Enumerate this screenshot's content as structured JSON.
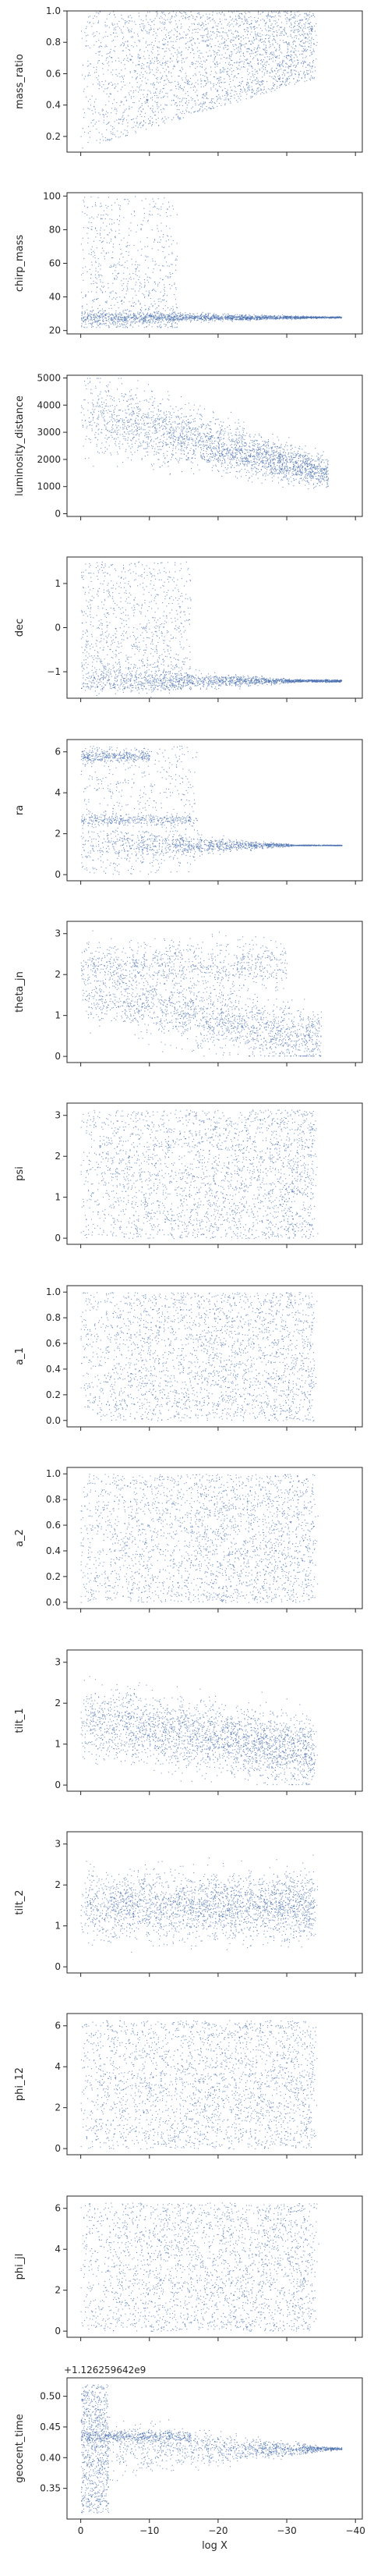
{
  "figure": {
    "xlabel": "log X"
  },
  "chart_data": [
    {
      "type": "scatter",
      "ylabel": "mass_ratio",
      "ylim": [
        0.1,
        1.0
      ],
      "yticks": [
        0.2,
        0.4,
        0.6,
        0.8,
        1.0
      ],
      "yticklabels": [
        "0.2",
        "0.4",
        "0.6",
        "0.8",
        "1.0"
      ]
    },
    {
      "type": "scatter",
      "ylabel": "chirp_mass",
      "ylim": [
        18,
        102
      ],
      "yticks": [
        20,
        40,
        60,
        80,
        100
      ],
      "yticklabels": [
        "20",
        "40",
        "60",
        "80",
        "100"
      ]
    },
    {
      "type": "scatter",
      "ylabel": "luminosity_distance",
      "ylim": [
        -100,
        5100
      ],
      "yticks": [
        0,
        1000,
        2000,
        3000,
        4000,
        5000
      ],
      "yticklabels": [
        "0",
        "1000",
        "2000",
        "3000",
        "4000",
        "5000"
      ]
    },
    {
      "type": "scatter",
      "ylabel": "dec",
      "ylim": [
        -1.6,
        1.6
      ],
      "yticks": [
        -1,
        0,
        1
      ],
      "yticklabels": [
        "−1",
        "0",
        "1"
      ]
    },
    {
      "type": "scatter",
      "ylabel": "ra",
      "ylim": [
        -0.3,
        6.6
      ],
      "yticks": [
        0,
        2,
        4,
        6
      ],
      "yticklabels": [
        "0",
        "2",
        "4",
        "6"
      ]
    },
    {
      "type": "scatter",
      "ylabel": "theta_jn",
      "ylim": [
        -0.15,
        3.3
      ],
      "yticks": [
        0,
        1,
        2,
        3
      ],
      "yticklabels": [
        "0",
        "1",
        "2",
        "3"
      ]
    },
    {
      "type": "scatter",
      "ylabel": "psi",
      "ylim": [
        -0.15,
        3.3
      ],
      "yticks": [
        0,
        1,
        2,
        3
      ],
      "yticklabels": [
        "0",
        "1",
        "2",
        "3"
      ]
    },
    {
      "type": "scatter",
      "ylabel": "a_1",
      "ylim": [
        -0.05,
        1.05
      ],
      "yticks": [
        0.0,
        0.2,
        0.4,
        0.6,
        0.8,
        1.0
      ],
      "yticklabels": [
        "0.0",
        "0.2",
        "0.4",
        "0.6",
        "0.8",
        "1.0"
      ]
    },
    {
      "type": "scatter",
      "ylabel": "a_2",
      "ylim": [
        -0.05,
        1.05
      ],
      "yticks": [
        0.0,
        0.2,
        0.4,
        0.6,
        0.8,
        1.0
      ],
      "yticklabels": [
        "0.0",
        "0.2",
        "0.4",
        "0.6",
        "0.8",
        "1.0"
      ]
    },
    {
      "type": "scatter",
      "ylabel": "tilt_1",
      "ylim": [
        -0.15,
        3.3
      ],
      "yticks": [
        0,
        1,
        2,
        3
      ],
      "yticklabels": [
        "0",
        "1",
        "2",
        "3"
      ]
    },
    {
      "type": "scatter",
      "ylabel": "tilt_2",
      "ylim": [
        -0.15,
        3.3
      ],
      "yticks": [
        0,
        1,
        2,
        3
      ],
      "yticklabels": [
        "0",
        "1",
        "2",
        "3"
      ]
    },
    {
      "type": "scatter",
      "ylabel": "phi_12",
      "ylim": [
        -0.3,
        6.6
      ],
      "yticks": [
        0,
        2,
        4,
        6
      ],
      "yticklabels": [
        "0",
        "2",
        "4",
        "6"
      ]
    },
    {
      "type": "scatter",
      "ylabel": "phi_jl",
      "ylim": [
        -0.3,
        6.6
      ],
      "yticks": [
        0,
        2,
        4,
        6
      ],
      "yticklabels": [
        "0",
        "2",
        "4",
        "6"
      ]
    },
    {
      "type": "scatter",
      "ylabel": "geocent_time",
      "offset_text": "+1.126259642e9",
      "ylim": [
        0.3,
        0.53
      ],
      "yticks": [
        0.35,
        0.4,
        0.45,
        0.5
      ],
      "yticklabels": [
        "0.35",
        "0.40",
        "0.45",
        "0.50"
      ]
    }
  ],
  "xaxis": {
    "xlim": [
      2,
      -41
    ],
    "xticks": [
      0,
      -10,
      -20,
      -30,
      -40
    ],
    "xticklabels": [
      "0",
      "−10",
      "−20",
      "−30",
      "−40"
    ],
    "inverted": true
  },
  "style": {
    "marker_color": "#4c72b0",
    "axis_color": "#262626",
    "background": "#ffffff"
  }
}
